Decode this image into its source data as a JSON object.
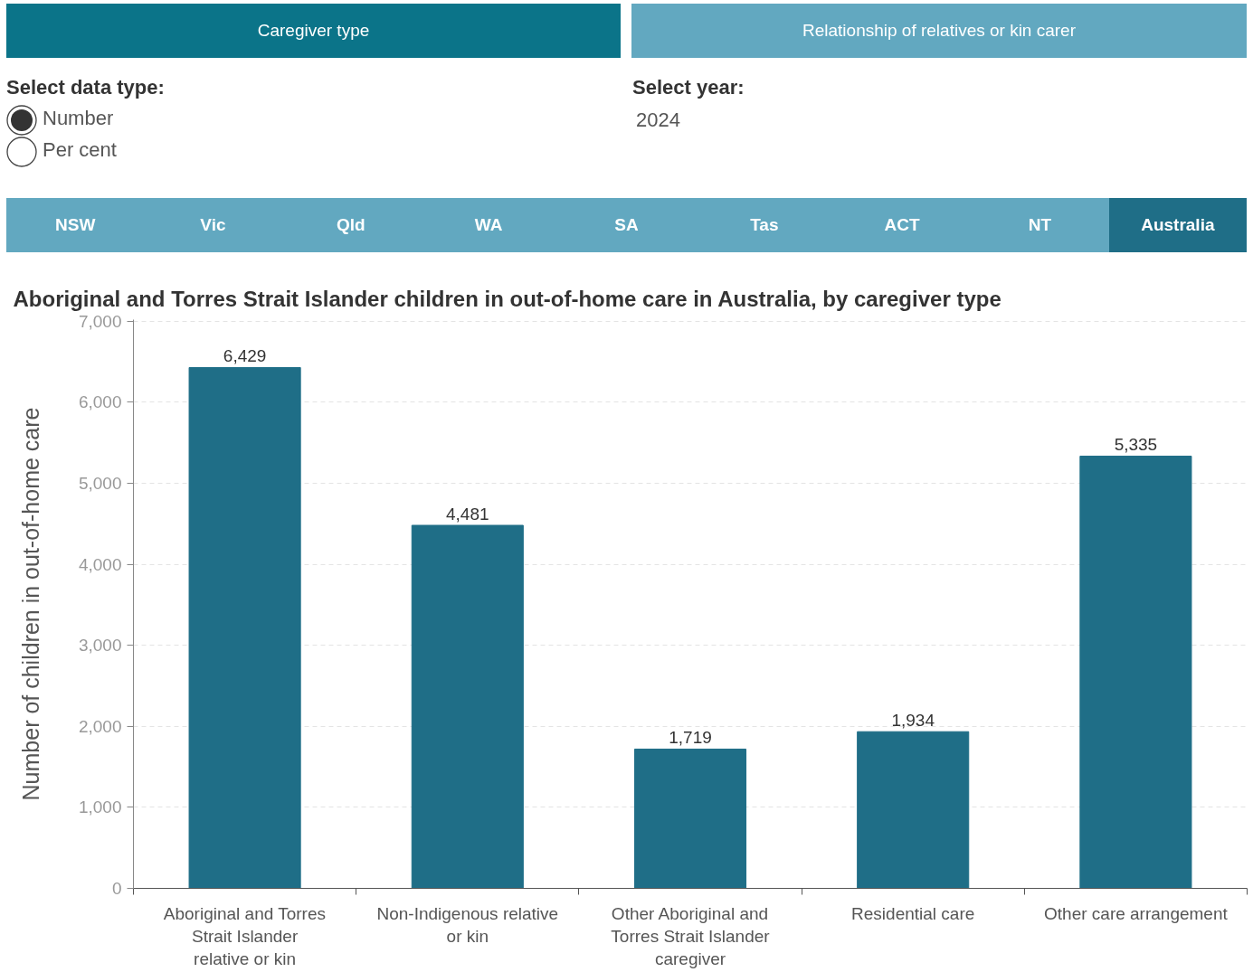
{
  "chart_data": {
    "type": "bar",
    "title": "Aboriginal and Torres Strait Islander children in out-of-home care in Australia, by caregiver type",
    "ylabel": "Number of children in out-of-home care",
    "categories": [
      "Aboriginal and Torres Strait Islander relative or kin",
      "Non-Indigenous relative or kin",
      "Other Aboriginal and Torres Strait Islander caregiver",
      "Residential care",
      "Other care arrangement"
    ],
    "values": [
      6429,
      4481,
      1719,
      1934,
      5335
    ],
    "value_labels": [
      "6,429",
      "4,481",
      "1,719",
      "1,934",
      "5,335"
    ],
    "color": "#1f6e87",
    "ylim": [
      0,
      7020
    ],
    "yticks": [
      0,
      {
        "value": 1000,
        "label": "1,000"
      },
      {
        "value": 2000,
        "label": "2,000"
      },
      {
        "value": 3000,
        "label": "3,000"
      },
      {
        "value": 4000,
        "label": "4,000"
      },
      {
        "value": 5000,
        "label": "5,000"
      },
      {
        "value": 6000,
        "label": "6,000"
      },
      {
        "value": 7000,
        "label": "7,000"
      }
    ],
    "grid": "y",
    "annotations": [
      "Caregiver type",
      "Relationship of relatives or kin carer",
      "Select data type:",
      "Number",
      "Per cent",
      "Select year:",
      "2024",
      "NSW",
      "Vic",
      "Qld",
      "WA",
      "SA",
      "Tas",
      "ACT",
      "NT",
      "Australia"
    ]
  }
}
